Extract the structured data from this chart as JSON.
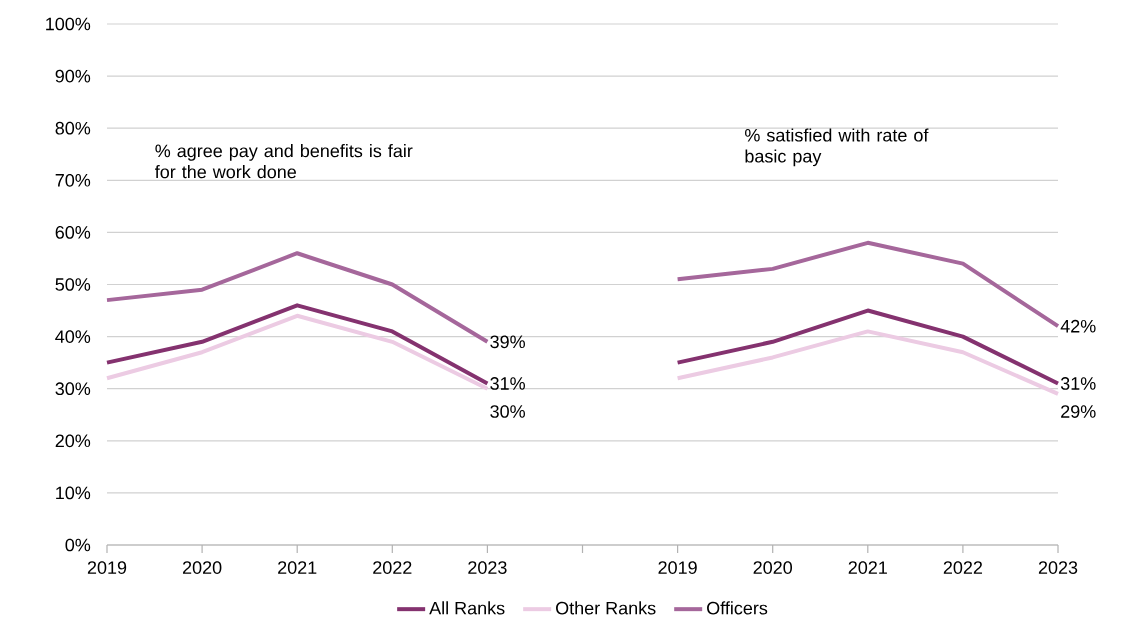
{
  "chart_data": {
    "type": "line",
    "categories": [
      "2019",
      "2020",
      "2021",
      "2022",
      "2023",
      null,
      "2019",
      "2020",
      "2021",
      "2022",
      "2023"
    ],
    "series": [
      {
        "name": "All Ranks",
        "color": "#84326f",
        "values": [
          35,
          39,
          46,
          41,
          31,
          null,
          35,
          39,
          45,
          40,
          31
        ],
        "value_labels": [
          null,
          null,
          null,
          null,
          "31%",
          null,
          null,
          null,
          null,
          null,
          "31%"
        ]
      },
      {
        "name": "Other Ranks",
        "color": "#eccbe3",
        "values": [
          32,
          37,
          44,
          39,
          30,
          null,
          32,
          36,
          41,
          37,
          29
        ],
        "value_labels": [
          null,
          null,
          null,
          null,
          "30%",
          null,
          null,
          null,
          null,
          null,
          "29%"
        ]
      },
      {
        "name": "Officers",
        "color": "#a5679b",
        "values": [
          47,
          49,
          56,
          50,
          39,
          null,
          51,
          53,
          58,
          54,
          42
        ],
        "value_labels": [
          null,
          null,
          null,
          null,
          "39%",
          null,
          null,
          null,
          null,
          null,
          "42%"
        ]
      }
    ],
    "ylim": [
      0,
      100
    ],
    "yticks": [
      {
        "value": 0,
        "label": "0%"
      },
      {
        "value": 10,
        "label": "10%"
      },
      {
        "value": 20,
        "label": "20%"
      },
      {
        "value": 30,
        "label": "30%"
      },
      {
        "value": 40,
        "label": "40%"
      },
      {
        "value": 50,
        "label": "50%"
      },
      {
        "value": 60,
        "label": "60%"
      },
      {
        "value": 70,
        "label": "70%"
      },
      {
        "value": 80,
        "label": "80%"
      },
      {
        "value": 90,
        "label": "90%"
      },
      {
        "value": 100,
        "label": "100%"
      }
    ],
    "annotations": [
      "% agree pay and benefits is fair for the work done",
      "% satisfied with rate of basic pay"
    ],
    "grid": "y",
    "legend": "bottom",
    "marker": "none",
    "line_style": "solid"
  }
}
